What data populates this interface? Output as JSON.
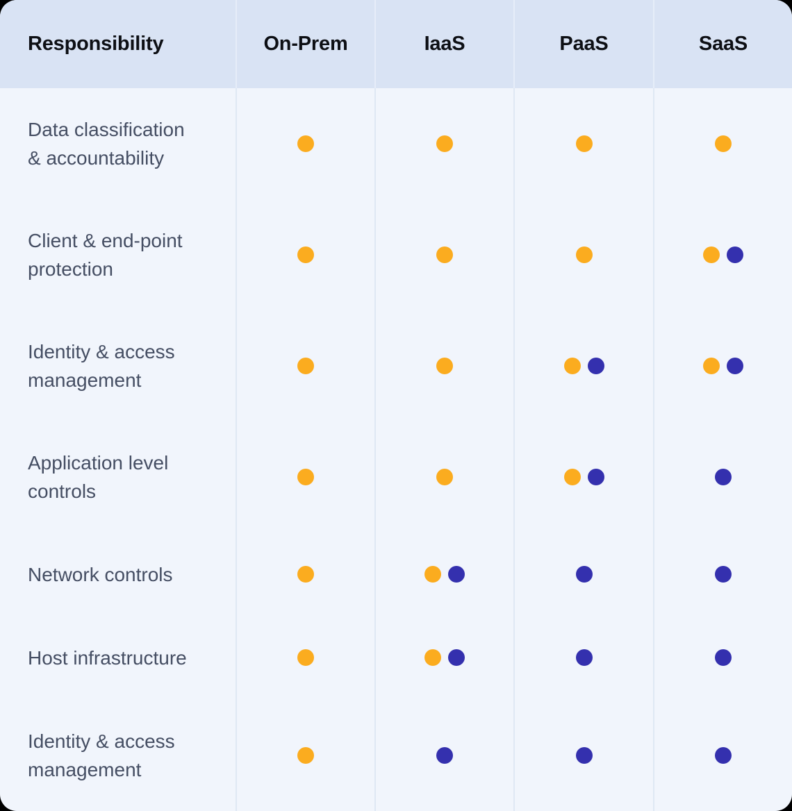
{
  "colors": {
    "orange_dot": "#FBAC1F",
    "blue_dot": "#3430AE",
    "header_bg": "#D9E3F4",
    "body_bg": "#F1F5FC",
    "header_text": "#0D0F14",
    "body_text": "#454E63",
    "divider_header": "#E6EDF9",
    "divider_body": "#DFE8F4",
    "page_bg": "#000000"
  },
  "chart_data": {
    "type": "table",
    "title": "",
    "columns": [
      {
        "key": "responsibility",
        "label": "Responsibility"
      },
      {
        "key": "on_prem",
        "label": "On-Prem"
      },
      {
        "key": "iaas",
        "label": "IaaS"
      },
      {
        "key": "paas",
        "label": "PaaS"
      },
      {
        "key": "saas",
        "label": "SaaS"
      }
    ],
    "marker_values": [
      "orange",
      "blue"
    ],
    "rows": [
      {
        "label": "Data classification & accountability",
        "cells": [
          [
            "orange"
          ],
          [
            "orange"
          ],
          [
            "orange"
          ],
          [
            "orange"
          ]
        ]
      },
      {
        "label": "Client & end-point protection",
        "cells": [
          [
            "orange"
          ],
          [
            "orange"
          ],
          [
            "orange"
          ],
          [
            "orange",
            "blue"
          ]
        ]
      },
      {
        "label": "Identity & access management",
        "cells": [
          [
            "orange"
          ],
          [
            "orange"
          ],
          [
            "orange",
            "blue"
          ],
          [
            "orange",
            "blue"
          ]
        ]
      },
      {
        "label": "Application level controls",
        "cells": [
          [
            "orange"
          ],
          [
            "orange"
          ],
          [
            "orange",
            "blue"
          ],
          [
            "blue"
          ]
        ]
      },
      {
        "label": "Network controls",
        "cells": [
          [
            "orange"
          ],
          [
            "orange",
            "blue"
          ],
          [
            "blue"
          ],
          [
            "blue"
          ]
        ]
      },
      {
        "label": "Host infrastructure",
        "cells": [
          [
            "orange"
          ],
          [
            "orange",
            "blue"
          ],
          [
            "blue"
          ],
          [
            "blue"
          ]
        ]
      },
      {
        "label": "Identity & access management",
        "cells": [
          [
            "orange"
          ],
          [
            "blue"
          ],
          [
            "blue"
          ],
          [
            "blue"
          ]
        ]
      }
    ]
  }
}
